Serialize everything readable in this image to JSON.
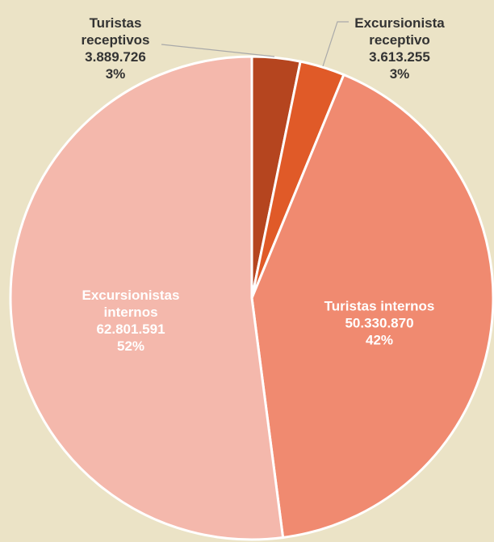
{
  "chart_data": {
    "type": "pie",
    "categories": [
      "Turistas receptivos",
      "Excursionista receptivo",
      "Turistas internos",
      "Excursionistas internos"
    ],
    "values": [
      3889726,
      3613255,
      50330870,
      62801591
    ],
    "value_labels": [
      "3.889.726",
      "3.613.255",
      "50.330.870",
      "62.801.591"
    ],
    "percents": [
      3,
      3,
      42,
      52
    ],
    "percent_labels": [
      "3%",
      "3%",
      "42%",
      "52%"
    ],
    "colors": [
      "#b5451f",
      "#e05a28",
      "#f08a70",
      "#f4b8ac"
    ]
  }
}
